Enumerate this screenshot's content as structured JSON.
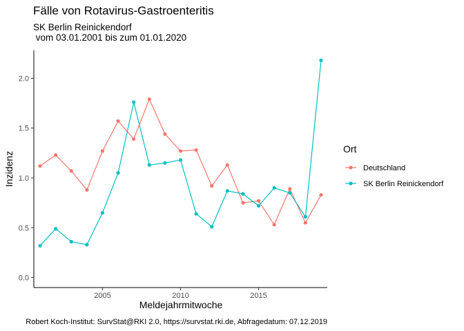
{
  "chart_data": {
    "type": "line",
    "title": "Fälle von Rotavirus-Gastroenteritis",
    "subtitle_line1": "SK Berlin Reinickendorf",
    "subtitle_line2": " vom 03.01.2001 bis zum 01.01.2020",
    "xlabel": "Meldejahrmitwoche",
    "ylabel": "Inzidenz",
    "caption": "Robert Koch-Institut: SurvStat@RKI 2.0, https://survstat.rki.de, Abfragedatum: 07.12.2019",
    "legend_title": "Ort",
    "legend_position": "right",
    "grid": false,
    "x": [
      2001,
      2002,
      2003,
      2004,
      2005,
      2006,
      2007,
      2008,
      2009,
      2010,
      2011,
      2012,
      2013,
      2014,
      2015,
      2016,
      2017,
      2018,
      2019
    ],
    "xlim": [
      2000.6,
      2019.4
    ],
    "ylim": [
      -0.1,
      2.28
    ],
    "x_ticks": [
      2005,
      2010,
      2015
    ],
    "x_tick_labels": [
      "2005",
      "2010",
      "2015"
    ],
    "y_ticks": [
      0.0,
      0.5,
      1.0,
      1.5,
      2.0
    ],
    "y_tick_labels": [
      "0.0",
      "0.5",
      "1.0",
      "1.5",
      "2.0"
    ],
    "series": [
      {
        "name": "Deutschland",
        "color": "#F8766D",
        "values": [
          1.12,
          1.23,
          1.07,
          0.88,
          1.27,
          1.57,
          1.39,
          1.79,
          1.44,
          1.27,
          1.28,
          0.92,
          1.13,
          0.75,
          0.77,
          0.53,
          0.89,
          0.55,
          0.83
        ]
      },
      {
        "name": "SK Berlin Reinickendorf",
        "color": "#00BFC4",
        "values": [
          0.32,
          0.49,
          0.36,
          0.33,
          0.65,
          1.05,
          1.76,
          1.13,
          1.15,
          1.18,
          0.64,
          0.51,
          0.87,
          0.84,
          0.72,
          0.9,
          0.85,
          0.61,
          2.18
        ]
      }
    ]
  }
}
